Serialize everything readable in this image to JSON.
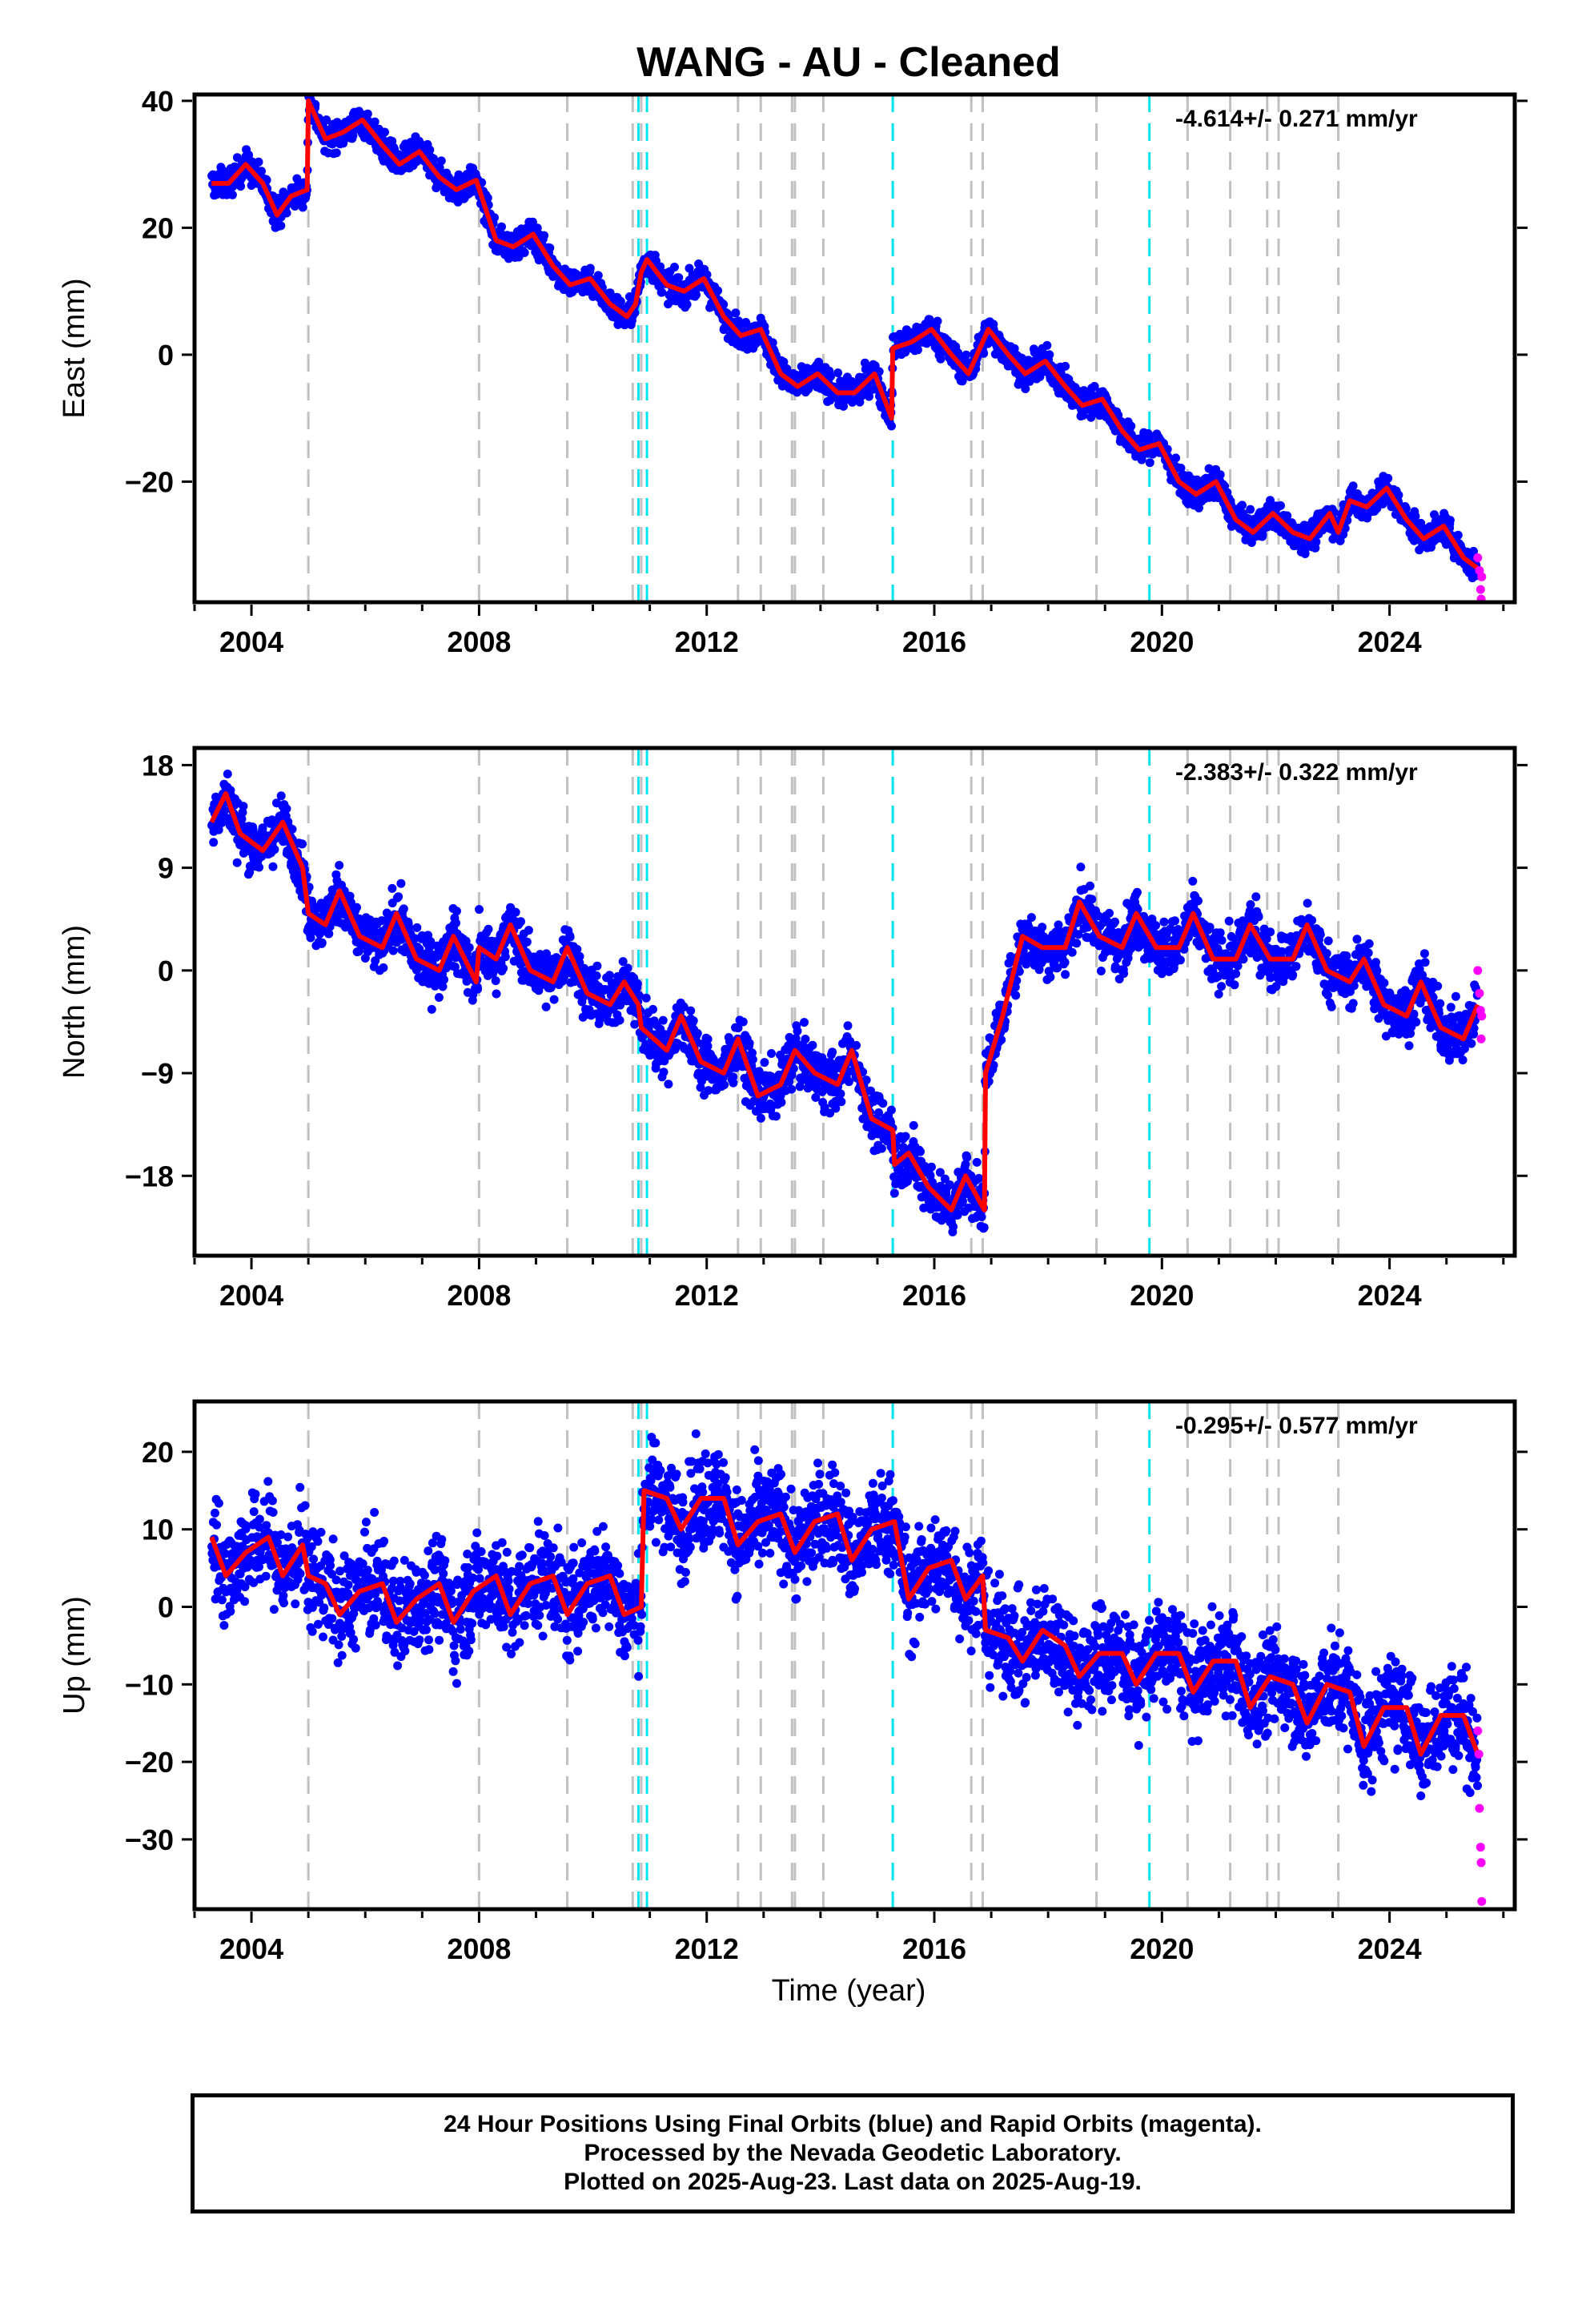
{
  "title": "WANG  - AU - Cleaned",
  "xlabel": "Time (year)",
  "caption": {
    "line1": "24 Hour Positions Using Final Orbits (blue) and Rapid Orbits (magenta).",
    "line2": "Processed by the Nevada Geodetic Laboratory.",
    "line3": "Plotted on 2025-Aug-23. Last data on 2025-Aug-19."
  },
  "colors": {
    "final_orbits": "#0000ff",
    "rapid_orbits": "#ff00ff",
    "model": "#ff0000",
    "equipment_change": "#c0c0c0",
    "earthquake": "#00e5ee"
  },
  "chart_data": [
    {
      "type": "scatter",
      "ylabel": "East (mm)",
      "rate_text": "-4.614+/- 0.271 mm/yr",
      "xlim": [
        2003.0,
        2026.2
      ],
      "ylim": [
        -39,
        41
      ],
      "xticks": [
        2004,
        2008,
        2012,
        2016,
        2020,
        2024
      ],
      "yticks": [
        -20,
        0,
        20,
        40
      ],
      "grid": false,
      "model_knots": [
        [
          2003.3,
          27
        ],
        [
          2003.6,
          27
        ],
        [
          2003.9,
          30
        ],
        [
          2004.2,
          27
        ],
        [
          2004.45,
          22
        ],
        [
          2004.7,
          25
        ],
        [
          2004.98,
          26
        ],
        [
          2005.0,
          40
        ],
        [
          2005.3,
          34
        ],
        [
          2005.6,
          35
        ],
        [
          2005.95,
          37
        ],
        [
          2006.3,
          33
        ],
        [
          2006.6,
          30
        ],
        [
          2006.95,
          32
        ],
        [
          2007.3,
          28
        ],
        [
          2007.6,
          26
        ],
        [
          2007.95,
          27.5
        ],
        [
          2008.3,
          18
        ],
        [
          2008.6,
          17
        ],
        [
          2008.95,
          19
        ],
        [
          2009.3,
          14
        ],
        [
          2009.6,
          11
        ],
        [
          2009.95,
          12
        ],
        [
          2010.3,
          8
        ],
        [
          2010.6,
          6
        ],
        [
          2010.75,
          8
        ],
        [
          2010.85,
          13
        ],
        [
          2010.95,
          15
        ],
        [
          2011.3,
          11
        ],
        [
          2011.6,
          10
        ],
        [
          2011.95,
          12
        ],
        [
          2012.3,
          6
        ],
        [
          2012.6,
          3
        ],
        [
          2012.95,
          4
        ],
        [
          2013.3,
          -3
        ],
        [
          2013.6,
          -5
        ],
        [
          2013.95,
          -3
        ],
        [
          2014.3,
          -6
        ],
        [
          2014.6,
          -6
        ],
        [
          2014.95,
          -3
        ],
        [
          2015.25,
          -10
        ],
        [
          2015.27,
          1
        ],
        [
          2015.6,
          2
        ],
        [
          2015.95,
          4
        ],
        [
          2016.3,
          0
        ],
        [
          2016.6,
          -3
        ],
        [
          2016.85,
          2
        ],
        [
          2016.95,
          4
        ],
        [
          2017.3,
          0
        ],
        [
          2017.6,
          -3
        ],
        [
          2017.95,
          -1
        ],
        [
          2018.3,
          -5
        ],
        [
          2018.6,
          -8
        ],
        [
          2018.95,
          -7
        ],
        [
          2019.3,
          -12
        ],
        [
          2019.6,
          -15
        ],
        [
          2019.95,
          -14
        ],
        [
          2020.3,
          -20
        ],
        [
          2020.6,
          -22
        ],
        [
          2020.95,
          -20
        ],
        [
          2021.3,
          -26
        ],
        [
          2021.6,
          -28
        ],
        [
          2021.95,
          -25
        ],
        [
          2022.3,
          -28
        ],
        [
          2022.6,
          -29
        ],
        [
          2022.95,
          -25
        ],
        [
          2023.1,
          -28
        ],
        [
          2023.3,
          -23
        ],
        [
          2023.6,
          -24
        ],
        [
          2023.95,
          -21
        ],
        [
          2024.3,
          -26
        ],
        [
          2024.6,
          -29
        ],
        [
          2024.95,
          -27
        ],
        [
          2025.3,
          -32
        ],
        [
          2025.6,
          -34
        ]
      ],
      "rapid_points": [
        [
          2025.55,
          -32
        ],
        [
          2025.58,
          -34
        ],
        [
          2025.6,
          -37
        ],
        [
          2025.61,
          -38.5
        ],
        [
          2025.62,
          -35
        ]
      ]
    },
    {
      "type": "scatter",
      "ylabel": "North (mm)",
      "rate_text": "-2.383+/- 0.322 mm/yr",
      "xlim": [
        2003.0,
        2026.2
      ],
      "ylim": [
        -25,
        19.5
      ],
      "xticks": [
        2004,
        2008,
        2012,
        2016,
        2020,
        2024
      ],
      "yticks": [
        -18,
        -9,
        0,
        9,
        18
      ],
      "grid": false,
      "model_knots": [
        [
          2003.3,
          13
        ],
        [
          2003.55,
          15.5
        ],
        [
          2003.8,
          12
        ],
        [
          2004.2,
          10.5
        ],
        [
          2004.55,
          13
        ],
        [
          2004.9,
          9
        ],
        [
          2005.0,
          5
        ],
        [
          2005.3,
          4
        ],
        [
          2005.55,
          7
        ],
        [
          2005.9,
          3
        ],
        [
          2006.3,
          2
        ],
        [
          2006.55,
          5
        ],
        [
          2006.9,
          1
        ],
        [
          2007.3,
          0
        ],
        [
          2007.55,
          3
        ],
        [
          2007.95,
          -1
        ],
        [
          2008.0,
          2
        ],
        [
          2008.3,
          1
        ],
        [
          2008.55,
          4
        ],
        [
          2008.9,
          0
        ],
        [
          2009.3,
          -1
        ],
        [
          2009.55,
          2
        ],
        [
          2009.9,
          -2
        ],
        [
          2010.3,
          -3
        ],
        [
          2010.55,
          -1
        ],
        [
          2010.8,
          -3
        ],
        [
          2010.85,
          -5
        ],
        [
          2011.3,
          -7
        ],
        [
          2011.55,
          -4
        ],
        [
          2011.9,
          -8
        ],
        [
          2012.3,
          -9
        ],
        [
          2012.55,
          -6
        ],
        [
          2012.9,
          -11
        ],
        [
          2013.3,
          -10
        ],
        [
          2013.55,
          -7
        ],
        [
          2013.9,
          -9
        ],
        [
          2014.3,
          -10
        ],
        [
          2014.55,
          -7
        ],
        [
          2014.9,
          -13
        ],
        [
          2015.27,
          -14
        ],
        [
          2015.3,
          -17
        ],
        [
          2015.55,
          -16
        ],
        [
          2015.9,
          -19
        ],
        [
          2016.3,
          -21
        ],
        [
          2016.55,
          -18
        ],
        [
          2016.88,
          -21
        ],
        [
          2016.9,
          -9
        ],
        [
          2017.2,
          -4
        ],
        [
          2017.55,
          3
        ],
        [
          2017.9,
          2
        ],
        [
          2018.3,
          2
        ],
        [
          2018.55,
          6
        ],
        [
          2018.9,
          3
        ],
        [
          2019.3,
          2
        ],
        [
          2019.55,
          5
        ],
        [
          2019.9,
          2
        ],
        [
          2020.3,
          2
        ],
        [
          2020.55,
          5
        ],
        [
          2020.9,
          1
        ],
        [
          2021.3,
          1
        ],
        [
          2021.55,
          4
        ],
        [
          2021.9,
          1
        ],
        [
          2022.3,
          1
        ],
        [
          2022.55,
          4
        ],
        [
          2022.9,
          0
        ],
        [
          2023.3,
          -1
        ],
        [
          2023.55,
          1
        ],
        [
          2023.9,
          -3
        ],
        [
          2024.3,
          -4
        ],
        [
          2024.55,
          -1
        ],
        [
          2024.9,
          -5
        ],
        [
          2025.3,
          -6
        ],
        [
          2025.55,
          -3
        ]
      ],
      "rapid_points": [
        [
          2025.55,
          0
        ],
        [
          2025.58,
          -2
        ],
        [
          2025.6,
          -3.5
        ],
        [
          2025.61,
          -6
        ],
        [
          2025.62,
          -4
        ]
      ]
    },
    {
      "type": "scatter",
      "ylabel": "Up (mm)",
      "rate_text": "-0.295+/- 0.577 mm/yr",
      "xlim": [
        2003.0,
        2026.2
      ],
      "ylim": [
        -39,
        26.5
      ],
      "xticks": [
        2004,
        2008,
        2012,
        2016,
        2020,
        2024
      ],
      "yticks": [
        -30,
        -20,
        -10,
        0,
        10,
        20
      ],
      "grid": false,
      "model_knots": [
        [
          2003.3,
          9
        ],
        [
          2003.55,
          4
        ],
        [
          2003.9,
          7
        ],
        [
          2004.3,
          9
        ],
        [
          2004.55,
          4
        ],
        [
          2004.9,
          8
        ],
        [
          2005.0,
          4
        ],
        [
          2005.3,
          3
        ],
        [
          2005.55,
          -1
        ],
        [
          2005.9,
          2
        ],
        [
          2006.3,
          3
        ],
        [
          2006.55,
          -2
        ],
        [
          2006.9,
          1
        ],
        [
          2007.3,
          3
        ],
        [
          2007.55,
          -2
        ],
        [
          2007.9,
          2
        ],
        [
          2008.3,
          4
        ],
        [
          2008.55,
          -1
        ],
        [
          2008.9,
          3
        ],
        [
          2009.3,
          4
        ],
        [
          2009.55,
          -1
        ],
        [
          2009.9,
          3
        ],
        [
          2010.3,
          4
        ],
        [
          2010.55,
          -1
        ],
        [
          2010.85,
          0
        ],
        [
          2010.9,
          15
        ],
        [
          2011.3,
          14
        ],
        [
          2011.55,
          10
        ],
        [
          2011.9,
          14
        ],
        [
          2012.3,
          14
        ],
        [
          2012.55,
          8
        ],
        [
          2012.9,
          11
        ],
        [
          2013.3,
          12
        ],
        [
          2013.55,
          7
        ],
        [
          2013.9,
          11
        ],
        [
          2014.3,
          12
        ],
        [
          2014.55,
          6
        ],
        [
          2014.9,
          10
        ],
        [
          2015.3,
          11
        ],
        [
          2015.55,
          1
        ],
        [
          2015.9,
          5
        ],
        [
          2016.3,
          6
        ],
        [
          2016.55,
          1
        ],
        [
          2016.85,
          4
        ],
        [
          2016.9,
          -3
        ],
        [
          2017.3,
          -4
        ],
        [
          2017.55,
          -7
        ],
        [
          2017.9,
          -3
        ],
        [
          2018.3,
          -5
        ],
        [
          2018.55,
          -9
        ],
        [
          2018.9,
          -6
        ],
        [
          2019.3,
          -6
        ],
        [
          2019.55,
          -10
        ],
        [
          2019.9,
          -6
        ],
        [
          2020.3,
          -6
        ],
        [
          2020.55,
          -11
        ],
        [
          2020.9,
          -7
        ],
        [
          2021.3,
          -7
        ],
        [
          2021.55,
          -13
        ],
        [
          2021.9,
          -9
        ],
        [
          2022.3,
          -10
        ],
        [
          2022.55,
          -15
        ],
        [
          2022.9,
          -10
        ],
        [
          2023.3,
          -11
        ],
        [
          2023.55,
          -18
        ],
        [
          2023.9,
          -13
        ],
        [
          2024.3,
          -13
        ],
        [
          2024.55,
          -19
        ],
        [
          2024.9,
          -14
        ],
        [
          2025.3,
          -14
        ],
        [
          2025.55,
          -19
        ]
      ],
      "rapid_points": [
        [
          2025.55,
          -16
        ],
        [
          2025.57,
          -19
        ],
        [
          2025.58,
          -26
        ],
        [
          2025.6,
          -31
        ],
        [
          2025.61,
          -33
        ],
        [
          2025.62,
          -38
        ]
      ]
    }
  ],
  "equipment_change_years": [
    2005.0,
    2008.0,
    2009.55,
    2010.7,
    2010.85,
    2012.55,
    2012.95,
    2013.5,
    2013.55,
    2014.05,
    2016.65,
    2016.85,
    2018.85,
    2020.45,
    2021.2,
    2021.85,
    2022.05,
    2023.1
  ],
  "earthquake_years": [
    2010.8,
    2010.95,
    2015.27,
    2019.78
  ]
}
